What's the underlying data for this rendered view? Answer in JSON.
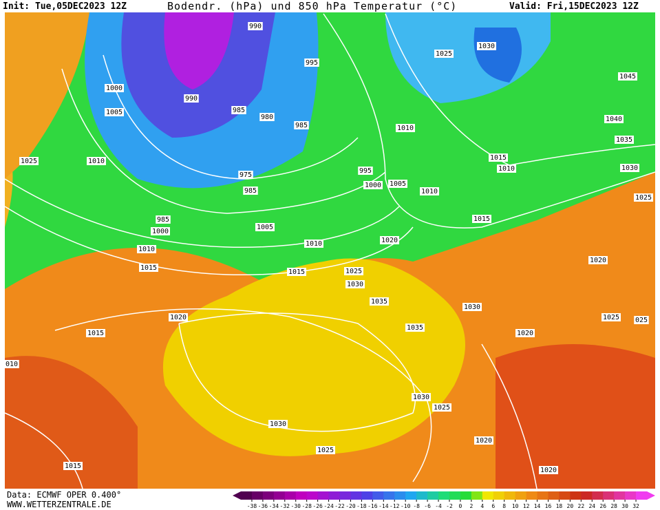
{
  "header": {
    "init": "Init: Tue,05DEC2023 12Z",
    "title": "Bodendr. (hPa) und 850 hPa Temperatur (°C)",
    "valid": "Valid: Fri,15DEC2023 12Z"
  },
  "footer": {
    "source": "Data: ECMWF OPER 0.400°",
    "site": "WWW.WETTERZENTRALE.DE"
  },
  "legend": {
    "ticks": [
      -38,
      -36,
      -34,
      -32,
      -30,
      -28,
      -26,
      -24,
      -22,
      -20,
      -18,
      -16,
      -14,
      -12,
      -10,
      -8,
      -6,
      -4,
      -2,
      0,
      2,
      4,
      6,
      8,
      10,
      12,
      14,
      16,
      18,
      20,
      22,
      24,
      26,
      28,
      30,
      32
    ]
  },
  "isobar_labels": [
    "990",
    "1000",
    "1005",
    "990",
    "985",
    "980",
    "985",
    "995",
    "1025",
    "1010",
    "975",
    "985",
    "995",
    "1000",
    "1005",
    "1010",
    "1025",
    "1030",
    "1045",
    "1040",
    "1035",
    "1030",
    "1025",
    "1015",
    "1010",
    "1010",
    "1015",
    "985",
    "1000",
    "1005",
    "1010",
    "1020",
    "1010",
    "1015",
    "1015",
    "1025",
    "1030",
    "1035",
    "1030",
    "1020",
    "1020",
    "1015",
    "1035",
    "1025",
    "1020",
    "1030",
    "1025",
    "1030",
    "1025",
    "1020",
    "1015",
    "1020",
    "010",
    "025"
  ]
}
